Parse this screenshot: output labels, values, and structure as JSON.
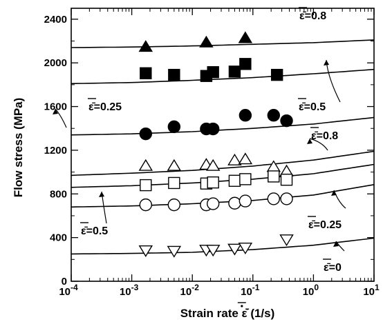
{
  "chart_data": {
    "type": "scatter",
    "title": "",
    "xlabel": "Strain rate ε̄̇ (1/s)",
    "ylabel": "Flow stress (MPa)",
    "xscale": "log",
    "xlim": [
      0.0001,
      10
    ],
    "ylim": [
      0,
      2500
    ],
    "x_ticks": [
      0.0001,
      0.001,
      0.01,
      0.1,
      1,
      10
    ],
    "x_tick_labels": [
      "10-4",
      "10-3",
      "10-2",
      "10-1",
      "100",
      "101"
    ],
    "y_ticks": [
      0,
      400,
      800,
      1200,
      1600,
      2000,
      2400
    ],
    "y_tick_labels": [
      "0",
      "400",
      "800",
      "1200",
      "1600",
      "2000",
      "2400"
    ],
    "grid": false,
    "series": [
      {
        "marker": "filled-triangle",
        "x": [
          0.0017,
          0.017,
          0.075
        ],
        "y": [
          2150,
          2190,
          2230
        ]
      },
      {
        "marker": "filled-square",
        "x": [
          0.0017,
          0.005,
          0.017,
          0.022,
          0.05,
          0.075,
          0.25
        ],
        "y": [
          1905,
          1890,
          1880,
          1915,
          1920,
          1990,
          1890
        ]
      },
      {
        "marker": "filled-circle",
        "x": [
          0.0017,
          0.005,
          0.017,
          0.022,
          0.075,
          0.22,
          0.36
        ],
        "y": [
          1350,
          1415,
          1395,
          1395,
          1520,
          1520,
          1470
        ]
      },
      {
        "marker": "open-triangle",
        "x": [
          0.0017,
          0.005,
          0.017,
          0.022,
          0.05,
          0.075,
          0.22,
          0.36
        ],
        "y": [
          1060,
          1060,
          1070,
          1060,
          1110,
          1120,
          1050,
          1010
        ]
      },
      {
        "marker": "open-square",
        "x": [
          0.0017,
          0.005,
          0.017,
          0.022,
          0.05,
          0.075,
          0.22,
          0.36
        ],
        "y": [
          880,
          900,
          895,
          905,
          920,
          935,
          960,
          930
        ]
      },
      {
        "marker": "open-circle",
        "x": [
          0.0017,
          0.005,
          0.017,
          0.022,
          0.05,
          0.075,
          0.22,
          0.36
        ],
        "y": [
          700,
          700,
          700,
          710,
          715,
          735,
          755,
          755
        ]
      },
      {
        "marker": "open-inverted-triangle",
        "x": [
          0.0017,
          0.005,
          0.017,
          0.022,
          0.05,
          0.075,
          0.36
        ],
        "y": [
          280,
          275,
          285,
          285,
          295,
          305,
          380
        ]
      }
    ],
    "curves": [
      {
        "x": [
          0.0001,
          0.001,
          0.01,
          0.1,
          1,
          10
        ],
        "y": [
          2140,
          2145,
          2155,
          2170,
          2185,
          2210
        ]
      },
      {
        "x": [
          0.0001,
          0.001,
          0.01,
          0.1,
          1,
          10
        ],
        "y": [
          1810,
          1820,
          1840,
          1865,
          1900,
          1940
        ]
      },
      {
        "x": [
          0.0001,
          0.001,
          0.01,
          0.1,
          1,
          10
        ],
        "y": [
          1340,
          1350,
          1370,
          1400,
          1440,
          1500
        ]
      },
      {
        "x": [
          0.0001,
          0.001,
          0.01,
          0.1,
          1,
          10
        ],
        "y": [
          970,
          990,
          1015,
          1055,
          1110,
          1190
        ]
      },
      {
        "x": [
          0.0001,
          0.001,
          0.01,
          0.1,
          1,
          10
        ],
        "y": [
          860,
          875,
          900,
          935,
          985,
          1070
        ]
      },
      {
        "x": [
          0.0001,
          0.001,
          0.01,
          0.1,
          1,
          10
        ],
        "y": [
          680,
          690,
          710,
          740,
          790,
          885
        ]
      },
      {
        "x": [
          0.0001,
          0.001,
          0.01,
          0.1,
          1,
          10
        ],
        "y": [
          250,
          255,
          265,
          290,
          330,
          395
        ]
      }
    ],
    "annotations": [
      {
        "text": "ε̄=0.8"
      },
      {
        "text": "ε̄=0.25"
      },
      {
        "text": "ε̄=0.5"
      },
      {
        "text": "ε̄=0.8"
      },
      {
        "text": "ε̄=0.5"
      },
      {
        "text": "ε̄=0.25"
      },
      {
        "text": "ε̄=0"
      }
    ]
  }
}
